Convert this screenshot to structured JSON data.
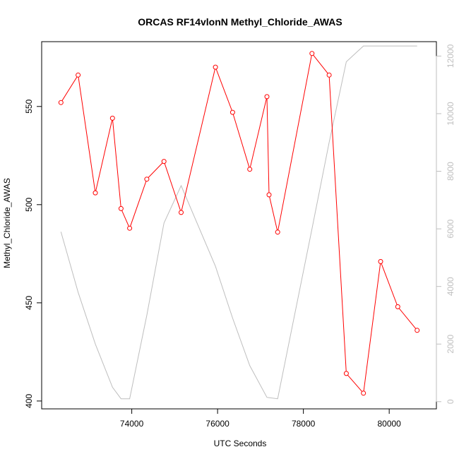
{
  "chart_data": {
    "type": "line",
    "title": "ORCAS RF14vlonN Methyl_Chloride_AWAS",
    "xlabel": "UTC Seconds",
    "ylabel": "Methyl_Chloride_AWAS",
    "xlim": [
      71900,
      81100
    ],
    "ylim": [
      396,
      583
    ],
    "y2lim": [
      -250,
      12500
    ],
    "x_ticks": [
      74000,
      76000,
      78000,
      80000
    ],
    "y_ticks": [
      400,
      450,
      500,
      550
    ],
    "y2_ticks": [
      0,
      2000,
      4000,
      6000,
      8000,
      10000,
      12000
    ],
    "grid": false,
    "series": [
      {
        "axis": "left",
        "color": "#ff0000",
        "marker": "open-circle",
        "x": [
          72350,
          72750,
          73150,
          73550,
          73750,
          73950,
          74350,
          74750,
          75150,
          75950,
          76350,
          76750,
          77150,
          77200,
          77400,
          78200,
          78600,
          79000,
          79400,
          79800,
          80200,
          80650
        ],
        "y": [
          552,
          566,
          506,
          544,
          498,
          488,
          513,
          522,
          496,
          570,
          547,
          518,
          555,
          505,
          486,
          577,
          566,
          414,
          404,
          471,
          448,
          436
        ]
      },
      {
        "axis": "right",
        "color": "#bebebe",
        "marker": "none",
        "x": [
          72350,
          72750,
          73150,
          73550,
          73750,
          73950,
          74350,
          74750,
          75150,
          75950,
          76350,
          76750,
          77150,
          77400,
          78200,
          78600,
          79000,
          79400,
          79800,
          80200,
          80650
        ],
        "y": [
          5900,
          3800,
          2000,
          500,
          100,
          100,
          3000,
          6200,
          7500,
          4700,
          2900,
          1250,
          150,
          100,
          6000,
          9000,
          11800,
          12350,
          12350,
          12350,
          12350
        ]
      }
    ]
  }
}
